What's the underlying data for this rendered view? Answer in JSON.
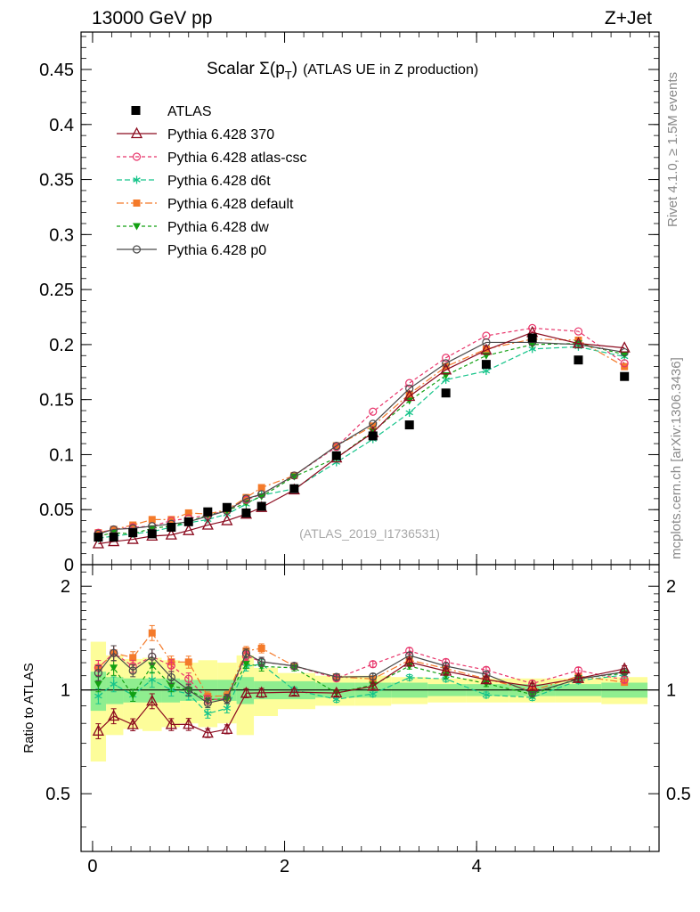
{
  "header": {
    "left": "13000 GeV pp",
    "right": "Z+Jet"
  },
  "side_labels": {
    "rivet": "Rivet 4.1.0, ≥ 1.5M events",
    "mcplots": "mcplots.cern.ch [arXiv:1306.3436]"
  },
  "watermark": "(ATLAS_2019_I1736531)",
  "chart_data": {
    "type": "scatter",
    "title": {
      "main": "Scalar Σ(p",
      "sub": "T",
      "close": ")",
      "rest": "(ATLAS UE in Z production)"
    },
    "x": [
      0.06,
      0.22,
      0.42,
      0.62,
      0.82,
      1.0,
      1.2,
      1.4,
      1.6,
      1.76,
      2.1,
      2.54,
      2.92,
      3.3,
      3.68,
      4.1,
      4.58,
      5.06,
      5.54
    ],
    "main": {
      "ylim": [
        0,
        0.484
      ],
      "yticks": [
        0,
        0.05,
        0.1,
        0.15,
        0.2,
        0.25,
        0.3,
        0.35,
        0.4,
        0.45
      ],
      "ytick_labels": [
        "0",
        "0.05",
        "0.1",
        "0.15",
        "0.2",
        "0.25",
        "0.3",
        "0.35",
        "0.4",
        "0.45"
      ]
    },
    "ratio": {
      "ylabel": "Ratio to ATLAS",
      "ylim": [
        0.34,
        2.31
      ],
      "yticks": [
        0.5,
        1,
        2
      ],
      "ytick_labels": [
        "0.5",
        "1",
        "2"
      ]
    },
    "xaxis": {
      "xlim": [
        -0.12,
        5.9
      ],
      "xticks": [
        0,
        2,
        4
      ],
      "xtick_labels": [
        "0",
        "2",
        "4"
      ]
    },
    "data": {
      "name": "ATLAS",
      "values": [
        0.025,
        0.025,
        0.029,
        0.028,
        0.034,
        0.039,
        0.048,
        0.052,
        0.047,
        0.053,
        0.069,
        0.099,
        0.117,
        0.127,
        0.156,
        0.182,
        0.206,
        0.186,
        0.171
      ]
    },
    "band_yellow_halfwidth": [
      0.38,
      0.26,
      0.23,
      0.24,
      0.22,
      0.2,
      0.22,
      0.2,
      0.26,
      0.16,
      0.12,
      0.1,
      0.1,
      0.09,
      0.08,
      0.08,
      0.08,
      0.08,
      0.09
    ],
    "band_green_halfwidth": [
      0.13,
      0.09,
      0.08,
      0.08,
      0.08,
      0.07,
      0.07,
      0.07,
      0.09,
      0.06,
      0.06,
      0.05,
      0.05,
      0.05,
      0.04,
      0.04,
      0.04,
      0.04,
      0.05
    ],
    "series": [
      {
        "name": "Pythia 6.428 370",
        "color": "#8b0a1e",
        "dash": "",
        "marker": "triangle-open",
        "values": [
          0.019,
          0.021,
          0.023,
          0.026,
          0.027,
          0.031,
          0.036,
          0.04,
          0.046,
          0.052,
          0.068,
          0.097,
          0.12,
          0.153,
          0.177,
          0.195,
          0.211,
          0.201,
          0.197
        ],
        "ratio_err": [
          0.05,
          0.05,
          0.04,
          0.05,
          0.04,
          0.04,
          0.03,
          0.03,
          0.03,
          0.03,
          0.02,
          0.02,
          0.02,
          0.02,
          0.02,
          0.02,
          0.02,
          0.02,
          0.02
        ]
      },
      {
        "name": "Pythia 6.428 atlas-csc",
        "color": "#e8346a",
        "dash": "4,3",
        "marker": "circle-open",
        "values": [
          0.029,
          0.032,
          0.034,
          0.035,
          0.04,
          0.042,
          0.045,
          0.049,
          0.059,
          0.064,
          0.081,
          0.107,
          0.139,
          0.165,
          0.188,
          0.208,
          0.215,
          0.212,
          0.183
        ],
        "ratio_err": [
          0.05,
          0.05,
          0.04,
          0.05,
          0.04,
          0.04,
          0.03,
          0.03,
          0.03,
          0.03,
          0.02,
          0.02,
          0.02,
          0.02,
          0.02,
          0.02,
          0.02,
          0.02,
          0.02
        ]
      },
      {
        "name": "Pythia 6.428 d6t",
        "color": "#16c48a",
        "dash": "6,3",
        "marker": "star",
        "values": [
          0.024,
          0.026,
          0.028,
          0.03,
          0.034,
          0.038,
          0.041,
          0.046,
          0.055,
          0.063,
          0.069,
          0.093,
          0.114,
          0.138,
          0.168,
          0.176,
          0.196,
          0.198,
          0.189
        ],
        "ratio_err": [
          0.05,
          0.05,
          0.04,
          0.05,
          0.04,
          0.04,
          0.03,
          0.03,
          0.03,
          0.03,
          0.02,
          0.02,
          0.02,
          0.02,
          0.02,
          0.02,
          0.02,
          0.02,
          0.02
        ]
      },
      {
        "name": "Pythia 6.428 default",
        "color": "#f47a2a",
        "dash": "8,3,2,3",
        "marker": "square",
        "values": [
          0.029,
          0.032,
          0.036,
          0.041,
          0.041,
          0.047,
          0.046,
          0.05,
          0.061,
          0.07,
          0.081,
          0.108,
          0.126,
          0.155,
          0.18,
          0.196,
          0.205,
          0.204,
          0.18
        ],
        "ratio_err": [
          0.05,
          0.05,
          0.04,
          0.05,
          0.04,
          0.04,
          0.03,
          0.03,
          0.03,
          0.03,
          0.02,
          0.02,
          0.02,
          0.02,
          0.02,
          0.02,
          0.02,
          0.02,
          0.02
        ]
      },
      {
        "name": "Pythia 6.428 dw",
        "color": "#12a012",
        "dash": "4,3",
        "marker": "triangle-down",
        "values": [
          0.026,
          0.029,
          0.028,
          0.033,
          0.035,
          0.039,
          0.045,
          0.049,
          0.056,
          0.062,
          0.08,
          0.097,
          0.121,
          0.149,
          0.172,
          0.19,
          0.2,
          0.201,
          0.191
        ],
        "ratio_err": [
          0.05,
          0.05,
          0.04,
          0.05,
          0.04,
          0.04,
          0.03,
          0.03,
          0.03,
          0.03,
          0.02,
          0.02,
          0.02,
          0.02,
          0.02,
          0.02,
          0.02,
          0.02,
          0.02
        ]
      },
      {
        "name": "Pythia 6.428 p0",
        "color": "#4a4a4a",
        "dash": "",
        "marker": "circle-open",
        "values": [
          0.028,
          0.032,
          0.033,
          0.035,
          0.037,
          0.039,
          0.044,
          0.049,
          0.06,
          0.064,
          0.081,
          0.108,
          0.128,
          0.16,
          0.183,
          0.202,
          0.202,
          0.2,
          0.193
        ],
        "ratio_err": [
          0.05,
          0.05,
          0.04,
          0.05,
          0.04,
          0.04,
          0.03,
          0.03,
          0.03,
          0.03,
          0.02,
          0.02,
          0.02,
          0.02,
          0.02,
          0.02,
          0.02,
          0.02,
          0.02
        ]
      }
    ]
  }
}
